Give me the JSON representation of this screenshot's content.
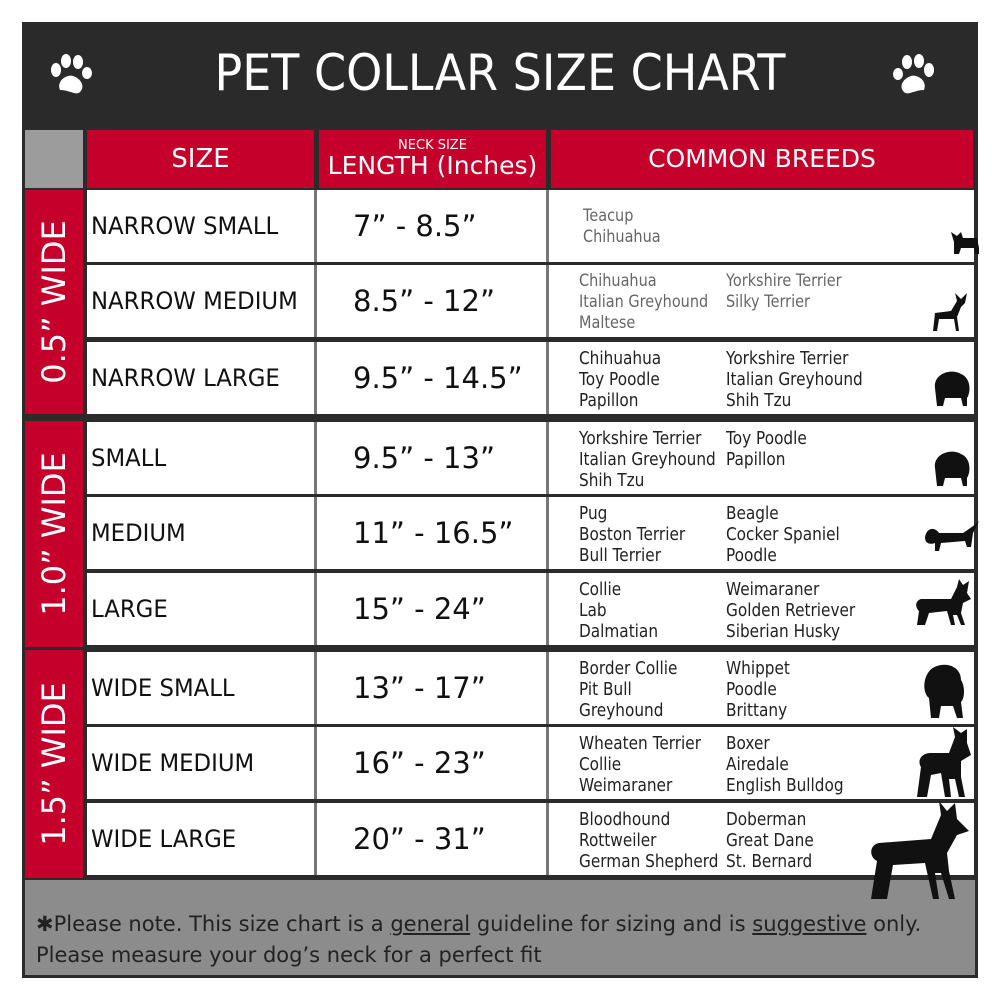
{
  "title": "PET COLLAR SIZE CHART",
  "icons": {
    "left": "paw-icon",
    "right": "paw-icon"
  },
  "colors": {
    "header_red": "#c4002b",
    "title_bg": "#2a2a2a",
    "footer_bg": "#8c8c8c"
  },
  "headers": {
    "size": "SIZE",
    "length_top": "NECK SIZE",
    "length": "LENGTH (Inches)",
    "breeds": "COMMON BREEDS"
  },
  "groups": [
    "0.5” WIDE",
    "1.0” WIDE",
    "1.5” WIDE"
  ],
  "rows": [
    {
      "size": "NARROW SMALL",
      "length": "7” - 8.5”",
      "breeds1": [
        "Teacup",
        "Chihuahua"
      ],
      "breeds2": [],
      "dog": "yorkie-silhouette-icon"
    },
    {
      "size": "NARROW MEDIUM",
      "length": "8.5” - 12”",
      "breeds1": [
        "Chihuahua",
        "Italian Greyhound",
        "Maltese"
      ],
      "breeds2": [
        "Yorkshire Terrier",
        "Silky Terrier"
      ],
      "dog": "chihuahua-silhouette-icon"
    },
    {
      "size": "NARROW LARGE",
      "length": "9.5” - 14.5”",
      "breeds1": [
        "Chihuahua",
        "Toy Poodle",
        "Papillon"
      ],
      "breeds2": [
        "Yorkshire Terrier",
        "Italian Greyhound",
        "Shih Tzu"
      ],
      "dog": "pomeranian-silhouette-icon"
    },
    {
      "size": "SMALL",
      "length": "9.5” - 13”",
      "breeds1": [
        "Yorkshire Terrier",
        "Italian Greyhound",
        "Shih Tzu"
      ],
      "breeds2": [
        "Toy Poodle",
        "Papillon"
      ],
      "dog": "pomeranian-silhouette-icon"
    },
    {
      "size": "MEDIUM",
      "length": "11” - 16.5”",
      "breeds1": [
        "Pug",
        "Boston Terrier",
        "Bull Terrier"
      ],
      "breeds2": [
        "Beagle",
        "Cocker Spaniel",
        "Poodle"
      ],
      "dog": "dachshund-silhouette-icon"
    },
    {
      "size": "LARGE",
      "length": "15” - 24”",
      "breeds1": [
        "Collie",
        "Lab",
        "Dalmatian"
      ],
      "breeds2": [
        "Weimaraner",
        "Golden Retriever",
        "Siberian Husky"
      ],
      "dog": "shepherd-silhouette-icon"
    },
    {
      "size": "WIDE SMALL",
      "length": "13” - 17”",
      "breeds1": [
        "Border Collie",
        "Pit Bull",
        "Greyhound"
      ],
      "breeds2": [
        "Whippet",
        "Poodle",
        "Brittany"
      ],
      "dog": "bulldog-silhouette-icon"
    },
    {
      "size": "WIDE MEDIUM",
      "length": "16” - 23”",
      "breeds1": [
        "Wheaten Terrier",
        "Collie",
        "Weimaraner"
      ],
      "breeds2": [
        "Boxer",
        "Airedale",
        "English Bulldog"
      ],
      "dog": "pitbull-silhouette-icon"
    },
    {
      "size": "WIDE LARGE",
      "length": "20” - 31”",
      "breeds1": [
        "Bloodhound",
        "Rottweiler",
        "German Shepherd"
      ],
      "breeds2": [
        "Doberman",
        "Great Dane",
        "St. Bernard"
      ],
      "dog": "doberman-silhouette-icon"
    }
  ],
  "footer": {
    "line1_a": "✱Please note. This size chart is a ",
    "line1_b": "general",
    "line1_c": " guideline for sizing and is ",
    "line1_d": "suggestive",
    "line1_e": " only.",
    "line2": "Please measure your dog’s neck for a perfect fit"
  }
}
